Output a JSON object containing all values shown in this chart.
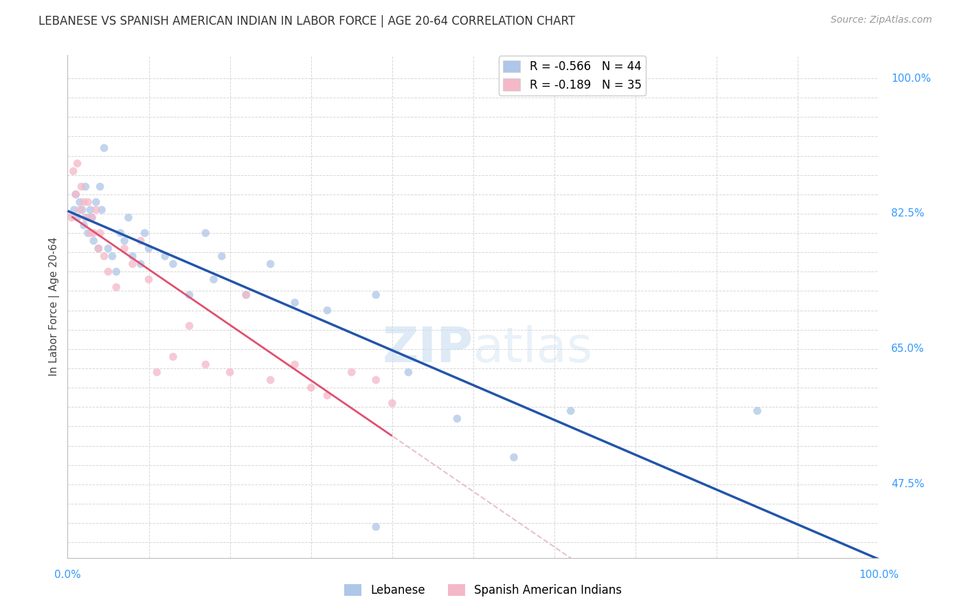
{
  "title": "LEBANESE VS SPANISH AMERICAN INDIAN IN LABOR FORCE | AGE 20-64 CORRELATION CHART",
  "source": "Source: ZipAtlas.com",
  "ylabel": "In Labor Force | Age 20-64",
  "background_color": "#ffffff",
  "grid_color": "#cccccc",
  "legend_R1": "-0.566",
  "legend_N1": "44",
  "legend_R2": "-0.189",
  "legend_N2": "35",
  "legend_label1": "Lebanese",
  "legend_label2": "Spanish American Indians",
  "scatter_color1": "#aec6e8",
  "scatter_color2": "#f4b8c8",
  "line_color1": "#2255aa",
  "line_color2": "#e05070",
  "line_color2_dashed": "#e8c0cc",
  "scatter_alpha": 0.75,
  "scatter_size": 70,
  "lebanese_x": [
    0.8,
    1.0,
    1.2,
    1.5,
    1.8,
    2.0,
    2.2,
    2.5,
    2.5,
    2.8,
    3.0,
    3.2,
    3.5,
    3.8,
    4.0,
    4.2,
    4.5,
    5.0,
    5.5,
    6.0,
    6.5,
    7.0,
    7.5,
    8.0,
    9.0,
    9.5,
    10.0,
    12.0,
    13.0,
    15.0,
    17.0,
    18.0,
    19.0,
    22.0,
    25.0,
    28.0,
    32.0,
    38.0,
    42.0,
    48.0,
    55.0,
    62.0,
    85.0,
    38.0
  ],
  "lebanese_y": [
    83.0,
    85.0,
    82.0,
    84.0,
    83.0,
    81.0,
    86.0,
    82.0,
    80.0,
    83.0,
    82.0,
    79.0,
    84.0,
    78.0,
    86.0,
    83.0,
    91.0,
    78.0,
    77.0,
    75.0,
    80.0,
    79.0,
    82.0,
    77.0,
    76.0,
    80.0,
    78.0,
    77.0,
    76.0,
    72.0,
    80.0,
    74.0,
    77.0,
    72.0,
    76.0,
    71.0,
    70.0,
    72.0,
    62.0,
    56.0,
    51.0,
    57.0,
    57.0,
    42.0
  ],
  "spanish_x": [
    0.5,
    0.7,
    1.0,
    1.2,
    1.5,
    1.7,
    2.0,
    2.2,
    2.5,
    2.8,
    3.0,
    3.2,
    3.5,
    3.8,
    4.0,
    4.5,
    5.0,
    6.0,
    7.0,
    8.0,
    9.0,
    10.0,
    11.0,
    13.0,
    15.0,
    17.0,
    20.0,
    22.0,
    25.0,
    28.0,
    30.0,
    32.0,
    35.0,
    38.0,
    40.0
  ],
  "spanish_y": [
    82.0,
    88.0,
    85.0,
    89.0,
    83.0,
    86.0,
    84.0,
    82.0,
    84.0,
    80.0,
    82.0,
    80.0,
    83.0,
    78.0,
    80.0,
    77.0,
    75.0,
    73.0,
    78.0,
    76.0,
    79.0,
    74.0,
    62.0,
    64.0,
    68.0,
    63.0,
    62.0,
    72.0,
    61.0,
    63.0,
    60.0,
    59.0,
    62.0,
    61.0,
    58.0
  ],
  "xlim": [
    0,
    100
  ],
  "ylim_bottom": 38.0,
  "ylim_top": 103.0,
  "ytick_labeled": [
    47.5,
    65.0,
    82.5,
    100.0
  ],
  "xtick_labeled": [
    0.0,
    100.0
  ]
}
